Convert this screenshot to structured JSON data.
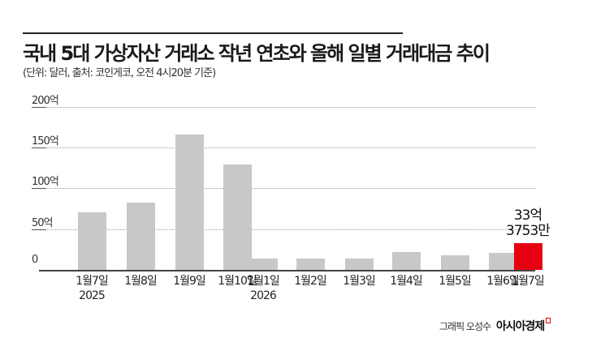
{
  "header": {
    "title": "국내 5대 가상자산 거래소 작년 연초와 올해 일별 거래대금 추이",
    "subtitle": "(단위: 달러, 출처: 코인게코, 오전 4시20분 기준)"
  },
  "annotation": {
    "line1": "33억",
    "line2": "3753만"
  },
  "credit": {
    "author": "그래픽 오성수",
    "brand": "아시아경제"
  },
  "axis": {
    "yticks": [
      "200억",
      "150억",
      "100억",
      "50억",
      "0"
    ]
  },
  "bars": [
    {
      "label": "1월7일",
      "sub": "2025",
      "value": 71
    },
    {
      "label": "1월8일",
      "sub": "",
      "value": 83
    },
    {
      "label": "1월9일",
      "sub": "",
      "value": 167
    },
    {
      "label": "1월10일",
      "sub": "",
      "value": 130
    },
    {
      "label": "1월1일",
      "sub": "2026",
      "value": 14
    },
    {
      "label": "1월2일",
      "sub": "",
      "value": 14
    },
    {
      "label": "1월3일",
      "sub": "",
      "value": 13.5
    },
    {
      "label": "1월4일",
      "sub": "",
      "value": 22
    },
    {
      "label": "1월5일",
      "sub": "",
      "value": 18
    },
    {
      "label": "1월6일",
      "sub": "",
      "value": 21
    },
    {
      "label": "1월7일",
      "sub": "",
      "value": 33.4
    }
  ],
  "colors": {
    "bar": "#c8c8c8",
    "highlight": "#e60012"
  },
  "chart_data": {
    "type": "bar",
    "title": "국내 5대 가상자산 거래소 작년 연초와 올해 일별 거래대금 추이",
    "subtitle": "(단위: 달러, 출처: 코인게코, 오전 4시20분 기준)",
    "categories": [
      "1월7일 2025",
      "1월8일",
      "1월9일",
      "1월10일",
      "1월1일 2026",
      "1월2일",
      "1월3일",
      "1월4일",
      "1월5일",
      "1월6일",
      "1월7일"
    ],
    "values": [
      71,
      83,
      167,
      130,
      14,
      14,
      13.5,
      22,
      18,
      21,
      33.3753
    ],
    "unit": "억 달러",
    "xlabel": "",
    "ylabel": "",
    "ylim": [
      0,
      200
    ],
    "yticks": [
      0,
      50,
      100,
      150,
      200
    ],
    "ytick_labels": [
      "0",
      "50억",
      "100억",
      "150억",
      "200억"
    ],
    "grid": true,
    "annotations": [
      {
        "category": "1월7일",
        "text": "33억 3753만"
      }
    ],
    "highlight": {
      "index": 10,
      "color": "#e60012"
    }
  }
}
